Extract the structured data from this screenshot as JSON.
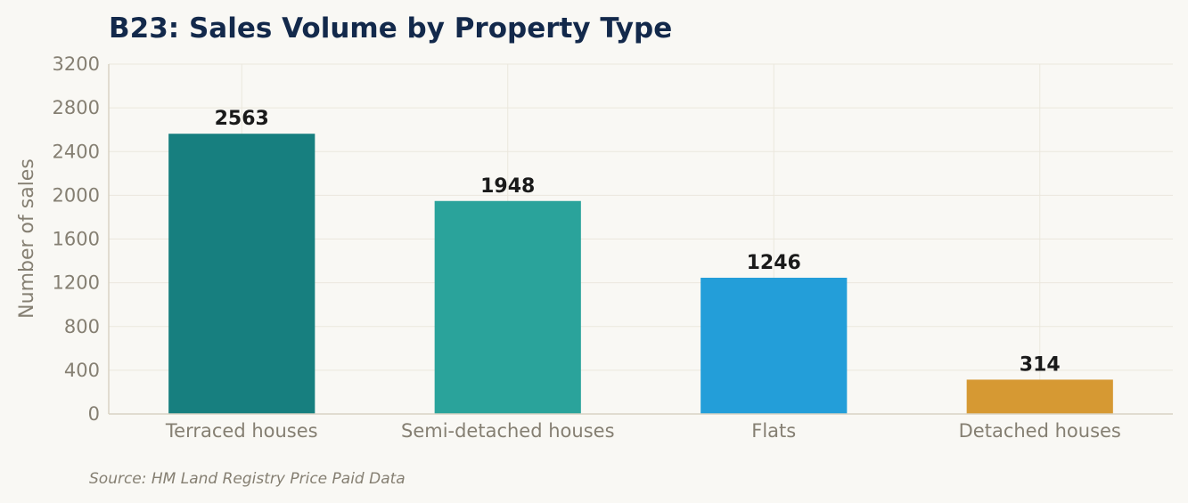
{
  "chart_data": {
    "type": "bar",
    "title": "B23: Sales Volume by Property Type",
    "xlabel": "",
    "ylabel": "Number of sales",
    "categories": [
      "Terraced houses",
      "Semi-detached houses",
      "Flats",
      "Detached houses"
    ],
    "values": [
      2563,
      1948,
      1246,
      314
    ],
    "data_labels": [
      "2563",
      "1948",
      "1246",
      "314"
    ],
    "colors": [
      "#177f7f",
      "#2aa39b",
      "#239ed9",
      "#d69933"
    ],
    "ylim": [
      0,
      3200
    ],
    "yticks": [
      0,
      400,
      800,
      1200,
      1600,
      2000,
      2400,
      2800,
      3200
    ],
    "ytick_labels": [
      "0",
      "400",
      "800",
      "1200",
      "1600",
      "2000",
      "2400",
      "2800",
      "3200"
    ],
    "grid": true,
    "legend": "none"
  },
  "source_note": "Source: HM Land Registry Price Paid Data"
}
